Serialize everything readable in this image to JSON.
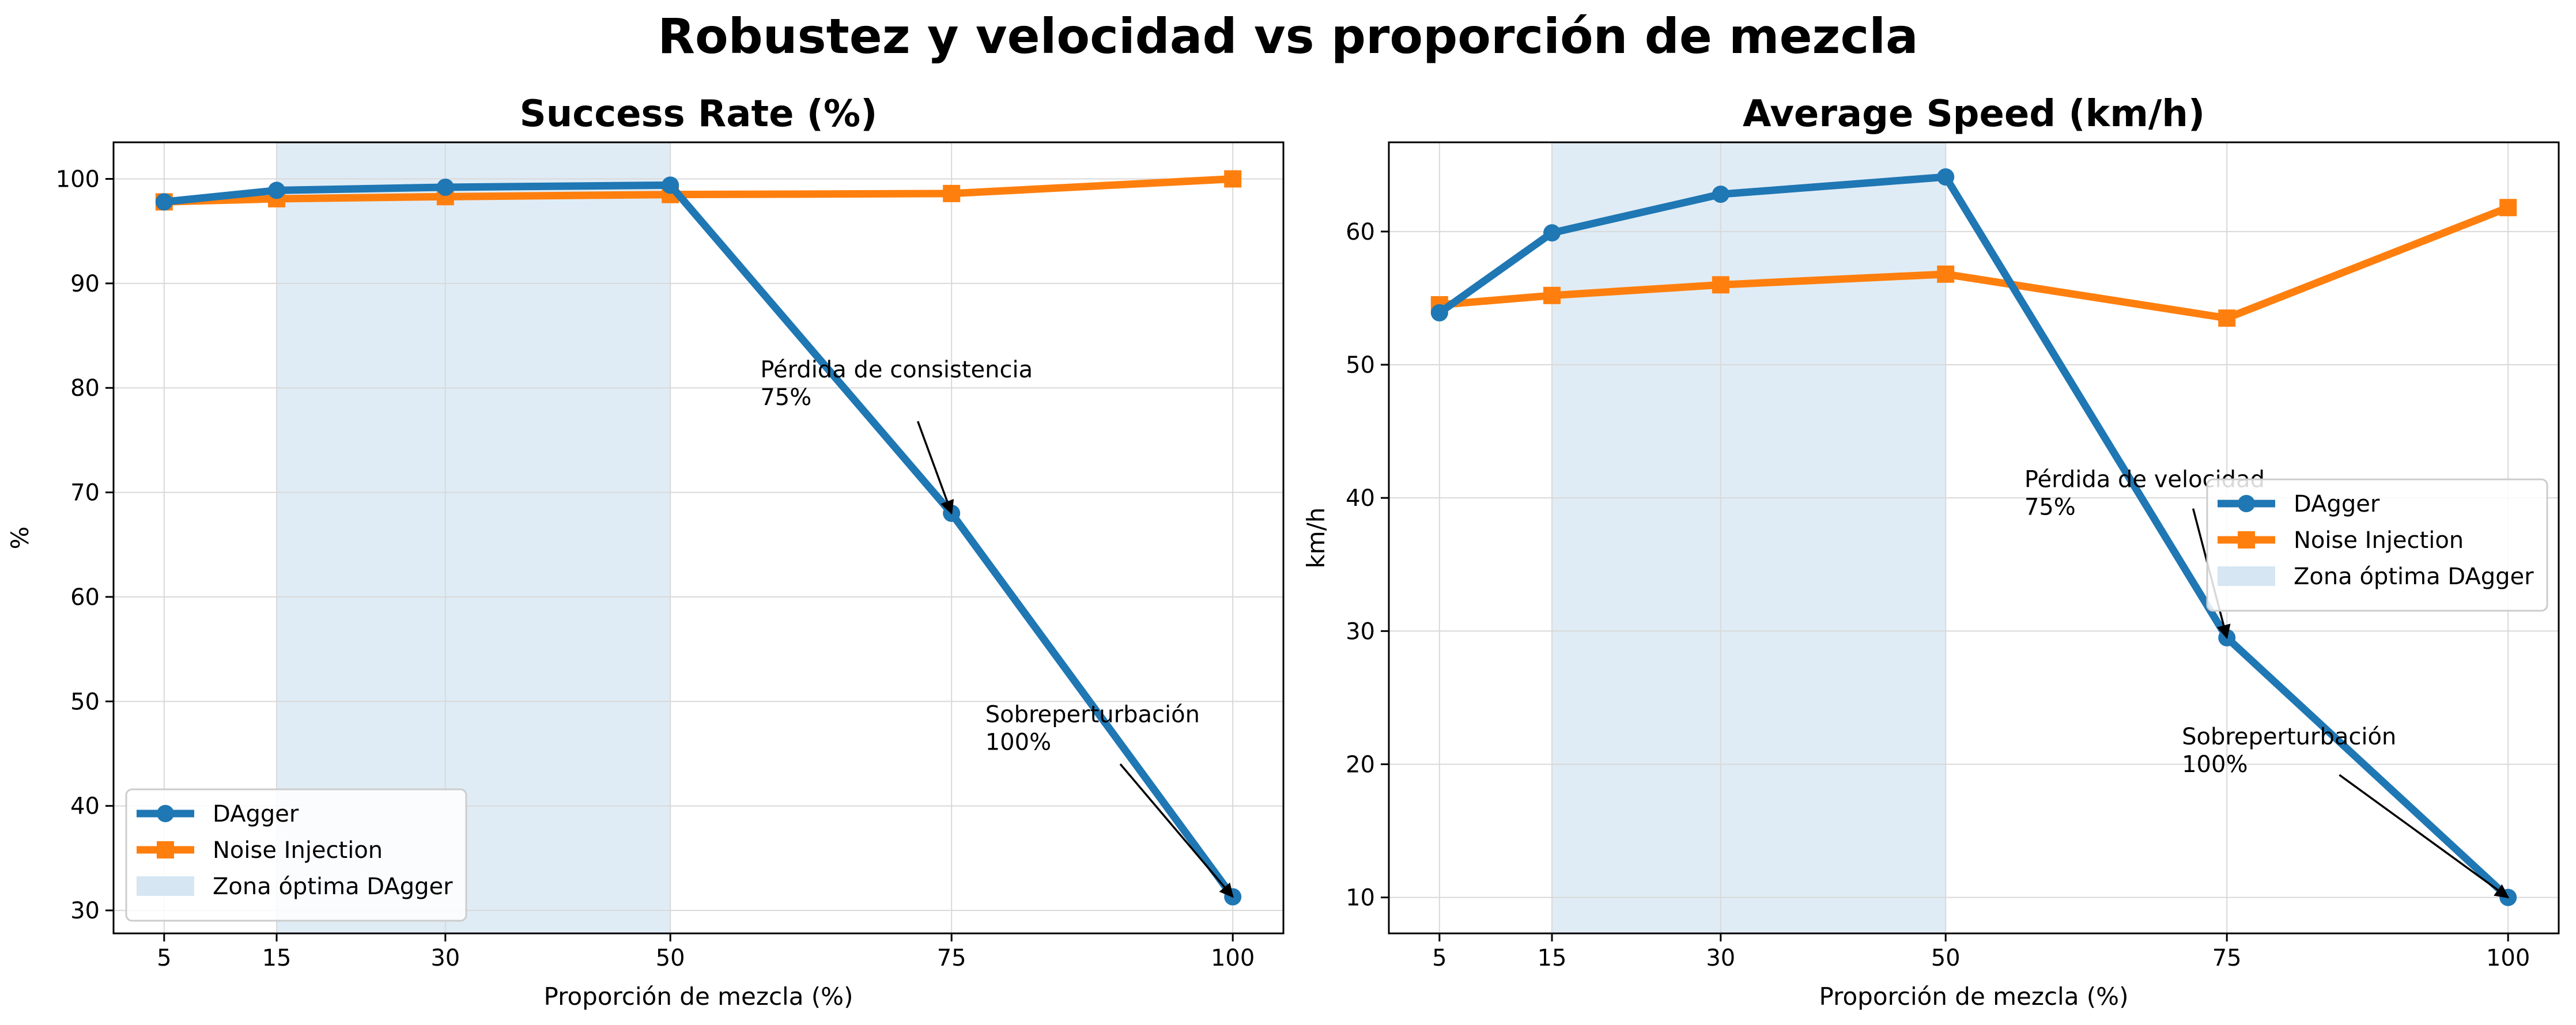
{
  "figure": {
    "title": "Robustez y velocidad vs proporción de mezcla"
  },
  "colors": {
    "dagger": "#1f77b4",
    "noise": "#ff7f0e",
    "optimal_zone": "#d6e6f2",
    "grid": "#d9d9d9"
  },
  "chart_data": [
    {
      "type": "line",
      "title": "Success Rate (%)",
      "xlabel": "Proporción de mezcla (%)",
      "ylabel": "%",
      "x": [
        5,
        15,
        30,
        50,
        75,
        100
      ],
      "xticks": [
        "5",
        "15",
        "30",
        "50",
        "75",
        "100"
      ],
      "yticks": [
        30,
        40,
        50,
        60,
        70,
        80,
        90,
        100
      ],
      "xlim": [
        0.5,
        104.5
      ],
      "ylim": [
        27.8,
        103.5
      ],
      "grid": true,
      "legend_position": "lower-left",
      "series": [
        {
          "name": "DAgger",
          "marker": "circle",
          "values": [
            97.8,
            98.9,
            99.2,
            99.4,
            68.0,
            31.3
          ]
        },
        {
          "name": "Noise Injection",
          "marker": "square",
          "values": [
            97.8,
            98.1,
            98.3,
            98.5,
            98.6,
            100.0
          ]
        }
      ],
      "shaded_region": {
        "name": "Zona óptima DAgger",
        "x_range": [
          15,
          50
        ]
      },
      "annotations": [
        {
          "line1": "Pérdida de consistencia",
          "line2": "75%",
          "text_pos": [
            58,
            81
          ],
          "arrow_from": [
            72,
            76.8
          ],
          "arrow_to": [
            75,
            68.0
          ]
        },
        {
          "line1": "Sobreperturbación",
          "line2": "100%",
          "text_pos": [
            78,
            48
          ],
          "arrow_from": [
            90,
            44
          ],
          "arrow_to": [
            100,
            31.3
          ]
        }
      ]
    },
    {
      "type": "line",
      "title": "Average Speed (km/h)",
      "xlabel": "Proporción de mezcla (%)",
      "ylabel": "km/h",
      "x": [
        5,
        15,
        30,
        50,
        75,
        100
      ],
      "xticks": [
        "5",
        "15",
        "30",
        "50",
        "75",
        "100"
      ],
      "yticks": [
        10,
        20,
        30,
        40,
        50,
        60
      ],
      "xlim": [
        0.5,
        104.5
      ],
      "ylim": [
        7.3,
        66.7
      ],
      "grid": true,
      "legend_position": "center-right",
      "series": [
        {
          "name": "DAgger",
          "marker": "circle",
          "values": [
            53.9,
            59.9,
            62.8,
            64.1,
            29.5,
            10.0
          ]
        },
        {
          "name": "Noise Injection",
          "marker": "square",
          "values": [
            54.5,
            55.2,
            56.0,
            56.8,
            53.5,
            61.8
          ]
        }
      ],
      "shaded_region": {
        "name": "Zona óptima DAgger",
        "x_range": [
          15,
          50
        ]
      },
      "annotations": [
        {
          "line1": "Pérdida de velocidad",
          "line2": "75%",
          "text_pos": [
            57,
            40.8
          ],
          "arrow_from": [
            72,
            39.2
          ],
          "arrow_to": [
            75,
            29.5
          ]
        },
        {
          "line1": "Sobreperturbación",
          "line2": "100%",
          "text_pos": [
            71,
            21.5
          ],
          "arrow_from": [
            85,
            19.2
          ],
          "arrow_to": [
            100,
            10.0
          ]
        }
      ]
    }
  ]
}
